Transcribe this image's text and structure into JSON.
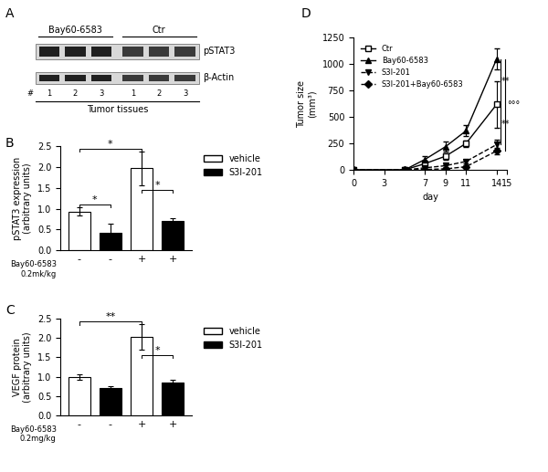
{
  "blot": {
    "panel": "A",
    "groups": [
      {
        "label": "Bay60-6583",
        "lanes": [
          "1",
          "2",
          "3"
        ]
      },
      {
        "label": "Ctr",
        "lanes": [
          "1",
          "2",
          "3"
        ]
      }
    ],
    "lane_prefix": "#",
    "bands": [
      "pSTAT3",
      "β-Actin"
    ],
    "caption": "Tumor tissues"
  },
  "chart_data": [
    {
      "panel": "B",
      "type": "bar",
      "categories": [
        "-",
        "-",
        "+",
        "+"
      ],
      "x_label": "Bay60-6583\n0.2mk/kg",
      "y_label": "pSTAT3 expression\n(arbitrary units)",
      "series": [
        {
          "name": "vehicle",
          "color": "#ffffff",
          "values": [
            0.93,
            null,
            1.97,
            null
          ],
          "errors": [
            0.1,
            null,
            0.4,
            null
          ]
        },
        {
          "name": "S3I-201",
          "color": "#000000",
          "values": [
            null,
            0.42,
            null,
            0.7
          ],
          "errors": [
            null,
            0.22,
            null,
            0.08
          ]
        }
      ],
      "ylim": [
        0,
        2.5
      ],
      "yticks": [
        {
          "value": 0,
          "label": "0.0"
        },
        {
          "value": 0.5,
          "label": "0.5"
        },
        {
          "value": 1.0,
          "label": "1.0"
        },
        {
          "value": 1.5,
          "label": "1.5"
        },
        {
          "value": 2.0,
          "label": "2.0"
        },
        {
          "value": 2.5,
          "label": "2.5"
        }
      ],
      "significance": [
        {
          "from": 0,
          "to": 1,
          "y": 1.1,
          "label": "*"
        },
        {
          "from": 0,
          "to": 2,
          "y": 2.45,
          "label": "*"
        },
        {
          "from": 2,
          "to": 3,
          "y": 1.45,
          "label": "*"
        }
      ],
      "legend": "right"
    },
    {
      "panel": "C",
      "type": "bar",
      "categories": [
        "-",
        "-",
        "+",
        "+"
      ],
      "x_label": "Bay60-6583\n0.2mg/kg",
      "y_label": "VEGF protein\n(arbitrary units)",
      "series": [
        {
          "name": "vehicle",
          "color": "#ffffff",
          "values": [
            1.0,
            null,
            2.02,
            null
          ],
          "errors": [
            0.07,
            null,
            0.33,
            null
          ]
        },
        {
          "name": "S3I-201",
          "color": "#000000",
          "values": [
            null,
            0.7,
            null,
            0.84
          ],
          "errors": [
            null,
            0.05,
            null,
            0.08
          ]
        }
      ],
      "ylim": [
        0,
        2.5
      ],
      "yticks": [
        {
          "value": 0,
          "label": "0.0"
        },
        {
          "value": 0.5,
          "label": "0.5"
        },
        {
          "value": 1.0,
          "label": "1.0"
        },
        {
          "value": 1.5,
          "label": "1.5"
        },
        {
          "value": 2.0,
          "label": "2.0"
        },
        {
          "value": 2.5,
          "label": "2.5"
        }
      ],
      "significance": [
        {
          "from": 0,
          "to": 2,
          "y": 2.42,
          "label": "**"
        },
        {
          "from": 2,
          "to": 3,
          "y": 1.55,
          "label": "*"
        }
      ],
      "legend": "right"
    },
    {
      "panel": "D",
      "type": "line",
      "x_label": "day",
      "y_label": "Tumor size\n(mm³)",
      "x": [
        0,
        5,
        7,
        9,
        11,
        14
      ],
      "series": [
        {
          "name": "Ctr",
          "color": "#000000",
          "marker": "square_open",
          "line_style": "solid",
          "values": [
            0,
            0,
            60,
            130,
            250,
            620
          ],
          "errors": [
            0,
            0,
            20,
            30,
            30,
            220
          ]
        },
        {
          "name": "Bay60-6583",
          "color": "#000000",
          "marker": "triangle_up",
          "line_style": "solid",
          "values": [
            0,
            0,
            100,
            220,
            370,
            1050
          ],
          "errors": [
            0,
            0,
            30,
            50,
            50,
            100
          ]
        },
        {
          "name": "S3I-201",
          "color": "#000000",
          "marker": "triangle_down",
          "line_style": "dashed",
          "values": [
            0,
            0,
            20,
            40,
            80,
            240
          ],
          "errors": [
            0,
            0,
            10,
            15,
            20,
            50
          ]
        },
        {
          "name": "S3I-201+Bay60-6583",
          "color": "#000000",
          "marker": "diamond",
          "line_style": "dashed",
          "values": [
            0,
            0,
            5,
            10,
            30,
            180
          ],
          "errors": [
            0,
            0,
            5,
            5,
            10,
            30
          ]
        }
      ],
      "xlim": [
        0,
        15
      ],
      "xticks": [
        0,
        3,
        7,
        9,
        11,
        14,
        15
      ],
      "ylim": [
        0,
        1250
      ],
      "yticks": [
        0,
        250,
        500,
        750,
        1000,
        1250
      ],
      "significance": [
        {
          "from": "Bay60-6583",
          "to": "Ctr",
          "label": "**"
        },
        {
          "from": "Ctr",
          "to": "S3I-201",
          "label": "**"
        },
        {
          "from": "Bay60-6583",
          "to": "S3I-201+Bay60-6583",
          "label": "°°°"
        }
      ],
      "legend": "upper left"
    }
  ]
}
